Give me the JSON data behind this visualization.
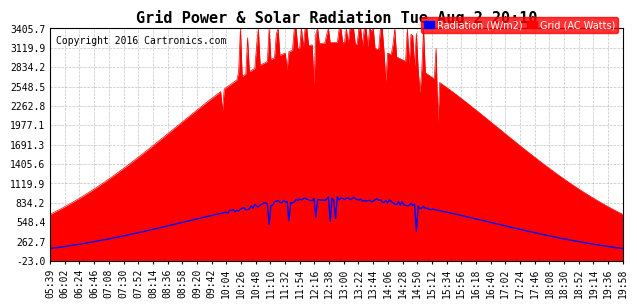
{
  "title": "Grid Power & Solar Radiation Tue Aug 2 20:10",
  "copyright": "Copyright 2016 Cartronics.com",
  "yticks": [
    3405.7,
    3119.9,
    2834.2,
    2548.5,
    2262.8,
    1977.1,
    1691.3,
    1405.6,
    1119.9,
    834.2,
    548.4,
    262.7,
    -23.0
  ],
  "ymin": -23.0,
  "ymax": 3405.7,
  "bg_color": "#ffffff",
  "grid_color": "#aaaaaa",
  "fill_color": "#ff0000",
  "line_color": "#0000ff",
  "legend_labels": [
    "Radiation (W/m2)",
    "Grid (AC Watts)"
  ],
  "legend_colors": [
    "#0000ff",
    "#ff0000"
  ],
  "title_fontsize": 11,
  "axis_fontsize": 7.5,
  "tick_fontsize": 7
}
